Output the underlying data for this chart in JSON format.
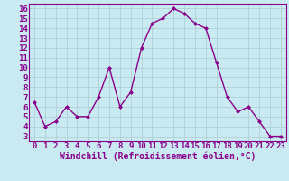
{
  "x": [
    0,
    1,
    2,
    3,
    4,
    5,
    6,
    7,
    8,
    9,
    10,
    11,
    12,
    13,
    14,
    15,
    16,
    17,
    18,
    19,
    20,
    21,
    22,
    23
  ],
  "y": [
    6.5,
    4.0,
    4.5,
    6.0,
    5.0,
    5.0,
    7.0,
    10.0,
    6.0,
    7.5,
    12.0,
    14.5,
    15.0,
    16.0,
    15.5,
    14.5,
    14.0,
    10.5,
    7.0,
    5.5,
    6.0,
    4.5,
    3.0,
    3.0
  ],
  "line_color": "#8b008b",
  "marker": "D",
  "marker_size": 2.0,
  "background_color": "#c8eaf0",
  "grid_color": "#b0d0d8",
  "xlabel": "Windchill (Refroidissement éolien,°C)",
  "xlabel_fontsize": 7,
  "xlim": [
    -0.5,
    23.5
  ],
  "ylim": [
    2.5,
    16.5
  ],
  "xtick_labels": [
    "0",
    "1",
    "2",
    "3",
    "4",
    "5",
    "6",
    "7",
    "8",
    "9",
    "10",
    "11",
    "12",
    "13",
    "14",
    "15",
    "16",
    "17",
    "18",
    "19",
    "20",
    "21",
    "22",
    "23"
  ],
  "ytick_vals": [
    3,
    4,
    5,
    6,
    7,
    8,
    9,
    10,
    11,
    12,
    13,
    14,
    15,
    16
  ],
  "tick_fontsize": 6.5,
  "line_width": 1.0
}
